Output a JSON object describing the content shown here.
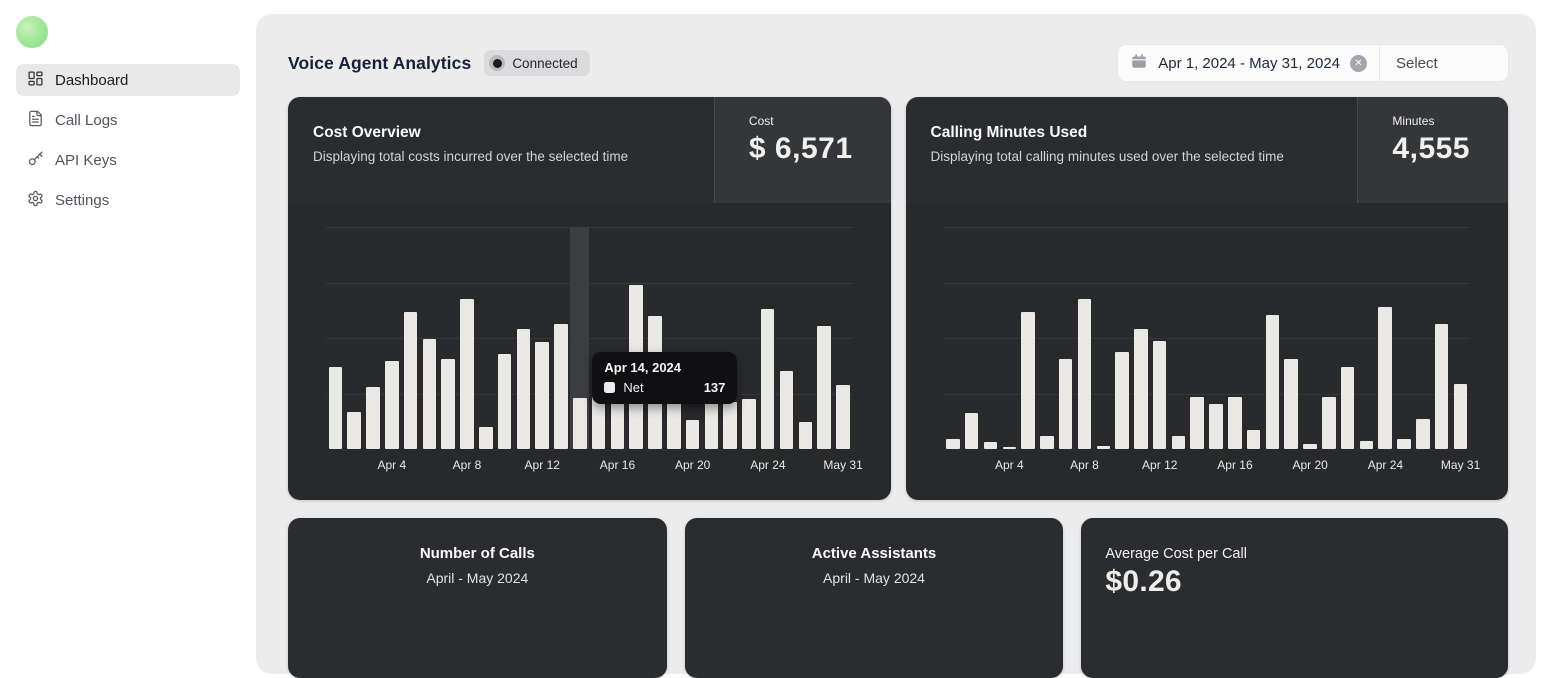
{
  "sidebar": {
    "items": [
      {
        "label": "Dashboard",
        "icon": "dashboard-grid-icon",
        "active": true
      },
      {
        "label": "Call Logs",
        "icon": "file-text-icon",
        "active": false
      },
      {
        "label": "API Keys",
        "icon": "key-icon",
        "active": false
      },
      {
        "label": "Settings",
        "icon": "gear-icon",
        "active": false
      }
    ]
  },
  "header": {
    "title": "Voice Agent Analytics",
    "status_badge": "Connected",
    "date_range": "Apr 1, 2024 - May 31, 2024",
    "clear_icon": "x-circle-icon",
    "calendar_icon": "calendar-icon",
    "select_label": "Select"
  },
  "summary_cards": {
    "cost": {
      "title": "Cost Overview",
      "subtitle": "Displaying total costs incurred over the selected time",
      "stat_label": "Cost",
      "stat_value": "$ 6,571"
    },
    "minutes": {
      "title": "Calling Minutes Used",
      "subtitle": "Displaying total calling minutes used over the selected time",
      "stat_label": "Minutes",
      "stat_value": "4,555"
    }
  },
  "tooltip": {
    "date": "Apr 14, 2024",
    "series": "Net",
    "value": "137"
  },
  "chart_data": [
    {
      "type": "bar",
      "title": "Cost Overview",
      "n_points": 28,
      "values": [
        223,
        99,
        167,
        239,
        371,
        298,
        244,
        406,
        59,
        258,
        325,
        290,
        338,
        137,
        148,
        164,
        443,
        360,
        134,
        78,
        137,
        126,
        134,
        379,
        210,
        73,
        333,
        172
      ],
      "ylim": [
        0,
        600
      ],
      "gridline_step": 150,
      "grid": true,
      "legend_position": "none",
      "tick_labels": [
        "Apr 4",
        "Apr 8",
        "Apr 12",
        "Apr 16",
        "Apr 20",
        "Apr 24",
        "May 31"
      ],
      "tick_indices": [
        3,
        7,
        11,
        15,
        19,
        23,
        27
      ],
      "highlight_index": 13,
      "highlight_label": "Apr 14, 2024",
      "highlight_value": 137,
      "bar_color": "#e9e8e5"
    },
    {
      "type": "bar",
      "title": "Calling Minutes Used",
      "n_points": 28,
      "values": [
        27,
        97,
        19,
        5,
        371,
        35,
        244,
        406,
        8,
        261,
        325,
        293,
        35,
        140,
        121,
        140,
        51,
        363,
        242,
        13,
        140,
        223,
        21,
        384,
        27,
        81,
        338,
        177
      ],
      "ylim": [
        0,
        600
      ],
      "gridline_step": 150,
      "grid": true,
      "legend_position": "none",
      "tick_labels": [
        "Apr 4",
        "Apr 8",
        "Apr 12",
        "Apr 16",
        "Apr 20",
        "Apr 24",
        "May 31"
      ],
      "tick_indices": [
        3,
        7,
        11,
        15,
        19,
        23,
        27
      ],
      "highlight_index": null,
      "bar_color": "#e9e8e5"
    }
  ],
  "bottom_cards": [
    {
      "title": "Number of Calls",
      "subtitle": "April - May 2024"
    },
    {
      "title": "Active Assistants",
      "subtitle": "April - May 2024"
    },
    {
      "title": "Average Cost per Call",
      "value": "$0.26"
    }
  ],
  "colors": {
    "panel_bg": "#ececec",
    "card_header_bg": "#2b2c2f",
    "stat_box_bg": "#353639",
    "chart_bg": "#28292b",
    "bar": "#e9e8e5",
    "hover_band": "#3d3e41",
    "tooltip_bg": "#101012",
    "accent_green": "#8fe087",
    "title_navy": "#16203a"
  }
}
